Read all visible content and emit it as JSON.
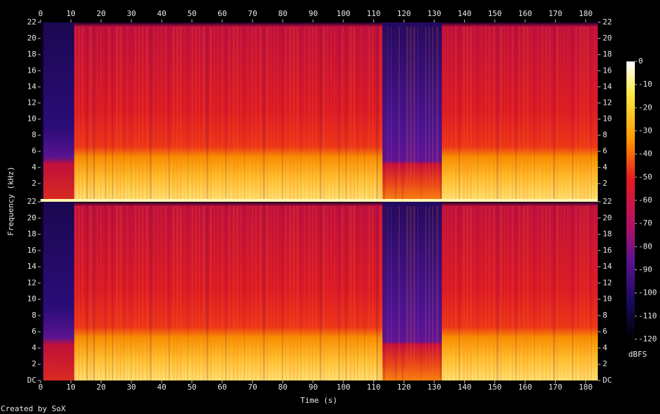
{
  "chart_data": {
    "type": "spectrogram",
    "x_label": "Time (s)",
    "y_label": "Frequency (kHz)",
    "footer": "Created by SoX",
    "xlim": [
      0,
      184
    ],
    "xticks": [
      0,
      10,
      20,
      30,
      40,
      50,
      60,
      70,
      80,
      90,
      100,
      110,
      120,
      130,
      140,
      150,
      160,
      170,
      180
    ],
    "channels": [
      {
        "ylim": [
          0,
          22
        ],
        "yticks": [
          2,
          4,
          6,
          8,
          10,
          12,
          14,
          16,
          18,
          20,
          22
        ]
      },
      {
        "ylim": [
          0,
          22
        ],
        "yticks": [
          {
            "value": 0,
            "label": "DC"
          },
          2,
          4,
          6,
          8,
          10,
          12,
          14,
          16,
          18,
          20,
          22
        ]
      }
    ],
    "colorbar": {
      "label": "dBFS",
      "lim": [
        -120,
        0
      ],
      "ticks": [
        0,
        -10,
        -20,
        -30,
        -40,
        -50,
        -60,
        -70,
        -80,
        -90,
        -100,
        -110,
        -120
      ]
    }
  }
}
